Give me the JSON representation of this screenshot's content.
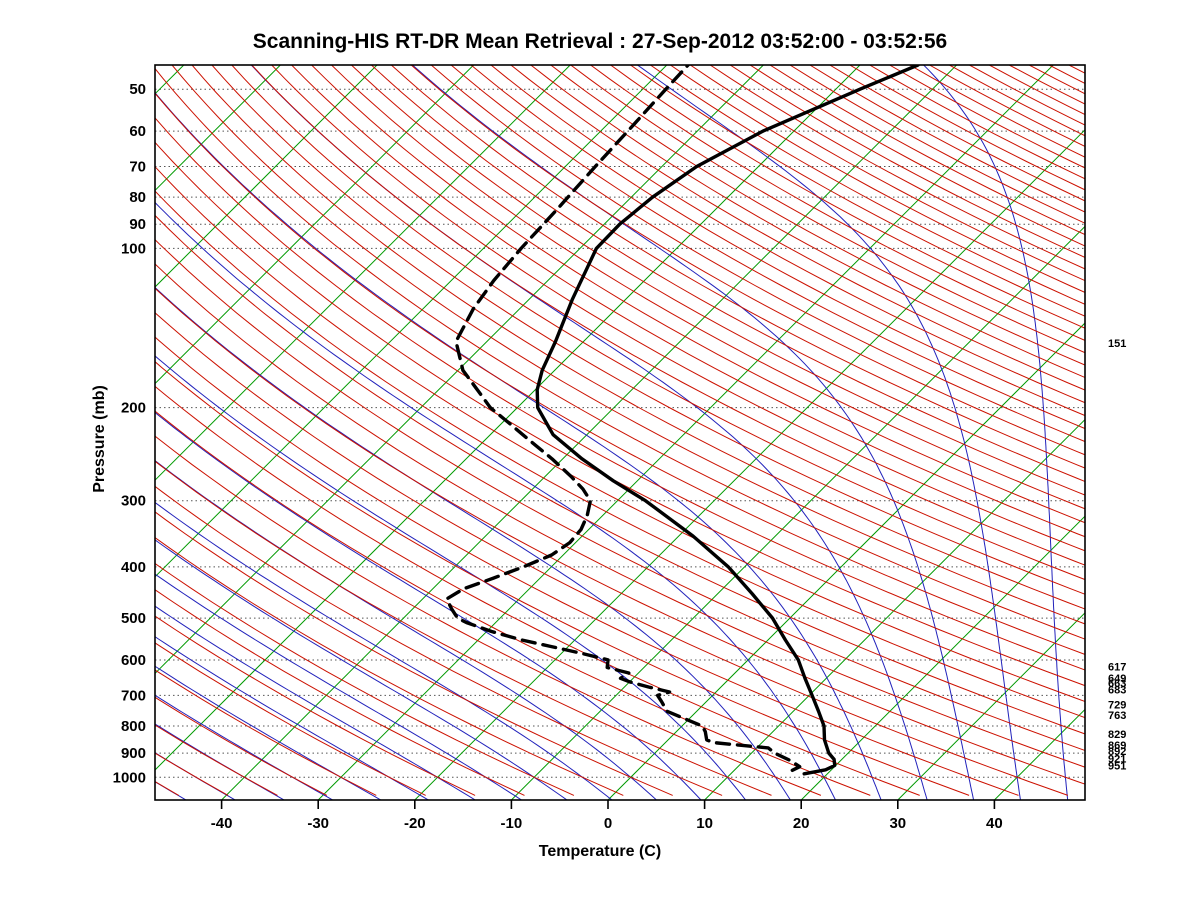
{
  "title": "Scanning-HIS RT-DR Mean Retrieval : 27-Sep-2012 03:52:00 - 03:52:56",
  "chart_data": {
    "type": "line",
    "diagram": "skew-t-log-p",
    "title": "Scanning-HIS RT-DR Mean Retrieval : 27-Sep-2012 03:52:00 - 03:52:56",
    "xlabel": "Temperature (C)",
    "ylabel": "Pressure (mb)",
    "x_ticks": [
      -40,
      -30,
      -20,
      -10,
      0,
      10,
      20,
      30,
      40
    ],
    "p_ticks": [
      50,
      60,
      70,
      80,
      90,
      100,
      200,
      300,
      400,
      500,
      600,
      700,
      800,
      900,
      1000
    ],
    "p_range": [
      45,
      1104
    ],
    "x_range_at_bottom_c": [
      -46.9,
      49.4
    ],
    "skew_isotherm_deg": 45,
    "grid": "horizontal dotted lines at labeled pressures",
    "legend": "none",
    "right_pressure_labels": [
      151,
      617,
      649,
      663,
      683,
      729,
      763,
      829,
      869,
      892,
      921,
      951
    ],
    "background": {
      "isotherms_c": {
        "min": -130,
        "max": 50,
        "step": 10,
        "color": "#009a00"
      },
      "dry_adiabats_c": {
        "min": -60,
        "max": 330,
        "step": 5,
        "color": "#cc1100"
      },
      "moist_adiabats_c": {
        "min": -60,
        "max": 45,
        "step": 5,
        "color": "#2222bb"
      },
      "gridline_color": "#555555",
      "frame_color": "#000000"
    },
    "series": [
      {
        "name": "temperature",
        "line": "solid",
        "color": "#000000",
        "points_p_t": [
          [
            985,
            17.6
          ],
          [
            968,
            19.4
          ],
          [
            950,
            19.9
          ],
          [
            925,
            19.2
          ],
          [
            900,
            18.0
          ],
          [
            850,
            16.2
          ],
          [
            800,
            14.7
          ],
          [
            750,
            12.6
          ],
          [
            700,
            10.3
          ],
          [
            650,
            7.8
          ],
          [
            600,
            5.2
          ],
          [
            550,
            1.8
          ],
          [
            500,
            -1.8
          ],
          [
            450,
            -6.4
          ],
          [
            400,
            -11.7
          ],
          [
            350,
            -18.5
          ],
          [
            300,
            -27.1
          ],
          [
            275,
            -32.5
          ],
          [
            250,
            -38.0
          ],
          [
            225,
            -43.5
          ],
          [
            200,
            -47.9
          ],
          [
            185,
            -49.8
          ],
          [
            170,
            -51.3
          ],
          [
            150,
            -52.9
          ],
          [
            125,
            -55.5
          ],
          [
            100,
            -58.3
          ],
          [
            90,
            -58.4
          ],
          [
            80,
            -57.8
          ],
          [
            70,
            -56.4
          ],
          [
            60,
            -53.2
          ],
          [
            50,
            -47.5
          ],
          [
            45,
            -44.0
          ]
        ]
      },
      {
        "name": "dewpoint",
        "line": "dashed",
        "color": "#000000",
        "points_p_t": [
          [
            970,
            16.0
          ],
          [
            955,
            16.4
          ],
          [
            930,
            14.8
          ],
          [
            900,
            12.4
          ],
          [
            880,
            11.2
          ],
          [
            860,
            5.0
          ],
          [
            850,
            4.0
          ],
          [
            820,
            3.0
          ],
          [
            800,
            2.1
          ],
          [
            770,
            -1.0
          ],
          [
            750,
            -3.1
          ],
          [
            720,
            -4.6
          ],
          [
            700,
            -5.7
          ],
          [
            690,
            -4.8
          ],
          [
            675,
            -7.5
          ],
          [
            660,
            -10.0
          ],
          [
            650,
            -11.3
          ],
          [
            635,
            -11.0
          ],
          [
            620,
            -13.8
          ],
          [
            600,
            -14.5
          ],
          [
            585,
            -17.5
          ],
          [
            565,
            -22.0
          ],
          [
            550,
            -25.5
          ],
          [
            530,
            -29.5
          ],
          [
            510,
            -33.0
          ],
          [
            500,
            -34.4
          ],
          [
            480,
            -36.0
          ],
          [
            460,
            -37.5
          ],
          [
            440,
            -36.8
          ],
          [
            420,
            -34.8
          ],
          [
            400,
            -32.9
          ],
          [
            380,
            -31.2
          ],
          [
            360,
            -30.6
          ],
          [
            340,
            -30.8
          ],
          [
            320,
            -31.6
          ],
          [
            300,
            -32.8
          ],
          [
            285,
            -34.8
          ],
          [
            270,
            -37.3
          ],
          [
            250,
            -41.1
          ],
          [
            230,
            -45.5
          ],
          [
            215,
            -49.0
          ],
          [
            200,
            -52.8
          ],
          [
            185,
            -56.0
          ],
          [
            170,
            -59.5
          ],
          [
            150,
            -63.2
          ],
          [
            130,
            -64.8
          ],
          [
            115,
            -65.6
          ],
          [
            100,
            -66.1
          ],
          [
            85,
            -66.4
          ],
          [
            70,
            -66.9
          ],
          [
            60,
            -67.2
          ],
          [
            50,
            -67.6
          ],
          [
            45,
            -67.8
          ]
        ]
      }
    ]
  }
}
